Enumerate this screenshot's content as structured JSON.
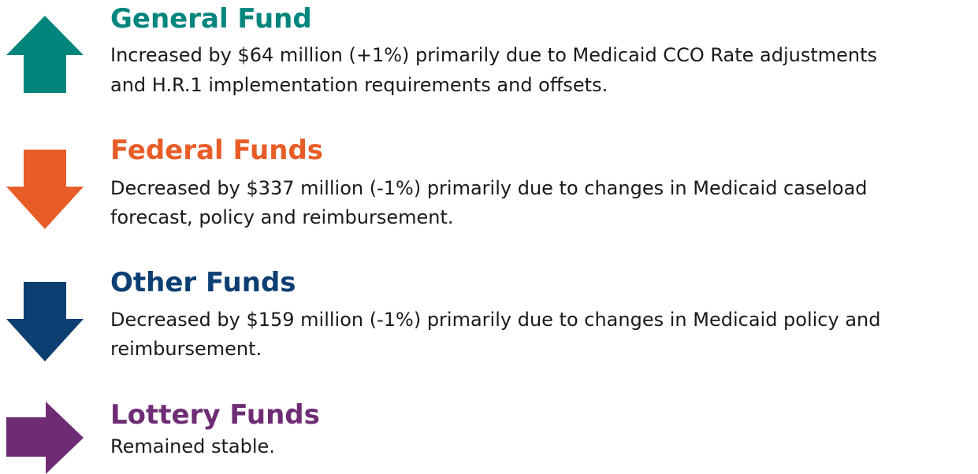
{
  "items": [
    {
      "title": "General Fund",
      "description": [
        "Increased by $64 million (+1%) primarily due to Medicaid CCO Rate adjustments",
        "and H.R.1 implementation requirements and offsets."
      ]
    },
    {
      "title": "Federal Funds",
      "description": [
        "Decreased by $337 million (-1%) primarily due to changes in Medicaid caseload",
        "forecast, policy and reimbursement."
      ]
    },
    {
      "title": "Other Funds",
      "description": [
        "Decreased by $159 million (-1%) primarily due to changes in Medicaid policy and",
        "reimbursement."
      ]
    },
    {
      "title": "Lottery Funds",
      "description": [
        "Remained stable."
      ]
    }
  ]
}
